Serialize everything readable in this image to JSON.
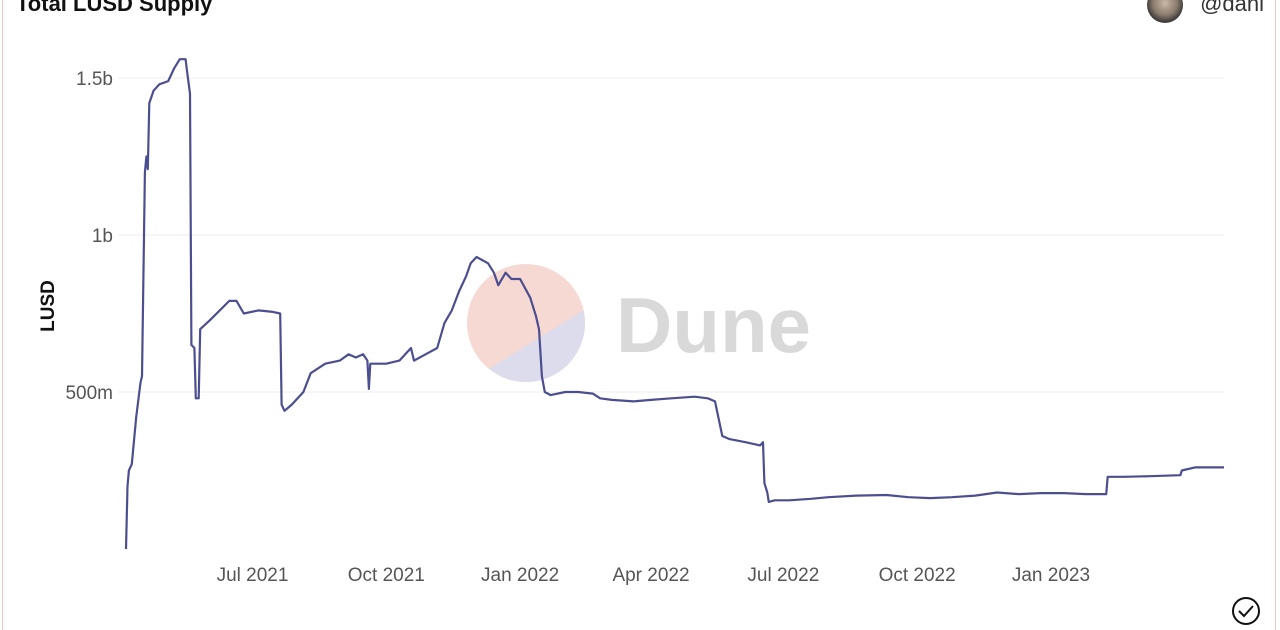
{
  "header": {
    "title": "Total LUSD Supply",
    "author": "@dani"
  },
  "watermark": {
    "text": "Dune"
  },
  "chart_data": {
    "type": "line",
    "title": "Total LUSD Supply",
    "xlabel": "",
    "ylabel": "LUSD",
    "ylim": [
      0,
      1600000000
    ],
    "xlim": [
      "2021-04-05",
      "2023-04-30"
    ],
    "yticks": [
      {
        "value": 500000000,
        "label": "500m"
      },
      {
        "value": 1000000000,
        "label": "1b"
      },
      {
        "value": 1500000000,
        "label": "1.5b"
      }
    ],
    "xticks": [
      {
        "date": "2021-07-01",
        "label": "Jul 2021"
      },
      {
        "date": "2021-10-01",
        "label": "Oct 2021"
      },
      {
        "date": "2022-01-01",
        "label": "Jan 2022"
      },
      {
        "date": "2022-04-01",
        "label": "Apr 2022"
      },
      {
        "date": "2022-07-01",
        "label": "Jul 2022"
      },
      {
        "date": "2022-10-01",
        "label": "Oct 2022"
      },
      {
        "date": "2023-01-01",
        "label": "Jan 2023"
      }
    ],
    "grid": true,
    "color": "#4c4f8f",
    "series": [
      {
        "points": [
          [
            "2021-04-05",
            0
          ],
          [
            "2021-04-06",
            200000000
          ],
          [
            "2021-04-07",
            250000000
          ],
          [
            "2021-04-09",
            270000000
          ],
          [
            "2021-04-12",
            420000000
          ],
          [
            "2021-04-15",
            530000000
          ],
          [
            "2021-04-16",
            550000000
          ],
          [
            "2021-04-18",
            1200000000
          ],
          [
            "2021-04-19",
            1250000000
          ],
          [
            "2021-04-20",
            1210000000
          ],
          [
            "2021-04-21",
            1420000000
          ],
          [
            "2021-04-24",
            1460000000
          ],
          [
            "2021-04-28",
            1480000000
          ],
          [
            "2021-05-04",
            1490000000
          ],
          [
            "2021-05-08",
            1530000000
          ],
          [
            "2021-05-12",
            1560000000
          ],
          [
            "2021-05-16",
            1560000000
          ],
          [
            "2021-05-17",
            1520000000
          ],
          [
            "2021-05-19",
            1450000000
          ],
          [
            "2021-05-20",
            650000000
          ],
          [
            "2021-05-22",
            640000000
          ],
          [
            "2021-05-23",
            480000000
          ],
          [
            "2021-05-25",
            480000000
          ],
          [
            "2021-05-26",
            700000000
          ],
          [
            "2021-06-02",
            730000000
          ],
          [
            "2021-06-15",
            790000000
          ],
          [
            "2021-06-20",
            790000000
          ],
          [
            "2021-06-25",
            750000000
          ],
          [
            "2021-07-05",
            760000000
          ],
          [
            "2021-07-15",
            755000000
          ],
          [
            "2021-07-20",
            750000000
          ],
          [
            "2021-07-21",
            460000000
          ],
          [
            "2021-07-23",
            440000000
          ],
          [
            "2021-07-28",
            460000000
          ],
          [
            "2021-08-01",
            480000000
          ],
          [
            "2021-08-05",
            500000000
          ],
          [
            "2021-08-10",
            560000000
          ],
          [
            "2021-08-20",
            590000000
          ],
          [
            "2021-08-30",
            600000000
          ],
          [
            "2021-09-05",
            620000000
          ],
          [
            "2021-09-10",
            610000000
          ],
          [
            "2021-09-15",
            620000000
          ],
          [
            "2021-09-18",
            600000000
          ],
          [
            "2021-09-19",
            510000000
          ],
          [
            "2021-09-20",
            590000000
          ],
          [
            "2021-10-01",
            590000000
          ],
          [
            "2021-10-10",
            600000000
          ],
          [
            "2021-10-18",
            640000000
          ],
          [
            "2021-10-20",
            600000000
          ],
          [
            "2021-10-28",
            620000000
          ],
          [
            "2021-11-05",
            640000000
          ],
          [
            "2021-11-10",
            720000000
          ],
          [
            "2021-11-15",
            760000000
          ],
          [
            "2021-11-20",
            820000000
          ],
          [
            "2021-11-25",
            870000000
          ],
          [
            "2021-11-28",
            910000000
          ],
          [
            "2021-12-02",
            930000000
          ],
          [
            "2021-12-06",
            920000000
          ],
          [
            "2021-12-10",
            910000000
          ],
          [
            "2021-12-14",
            880000000
          ],
          [
            "2021-12-17",
            840000000
          ],
          [
            "2021-12-22",
            880000000
          ],
          [
            "2021-12-26",
            860000000
          ],
          [
            "2022-01-01",
            860000000
          ],
          [
            "2022-01-08",
            800000000
          ],
          [
            "2022-01-12",
            740000000
          ],
          [
            "2022-01-14",
            700000000
          ],
          [
            "2022-01-16",
            550000000
          ],
          [
            "2022-01-18",
            500000000
          ],
          [
            "2022-01-22",
            490000000
          ],
          [
            "2022-02-01",
            500000000
          ],
          [
            "2022-02-10",
            500000000
          ],
          [
            "2022-02-20",
            495000000
          ],
          [
            "2022-02-25",
            480000000
          ],
          [
            "2022-03-05",
            475000000
          ],
          [
            "2022-03-20",
            470000000
          ],
          [
            "2022-04-01",
            475000000
          ],
          [
            "2022-04-15",
            480000000
          ],
          [
            "2022-05-01",
            485000000
          ],
          [
            "2022-05-10",
            480000000
          ],
          [
            "2022-05-15",
            470000000
          ],
          [
            "2022-05-20",
            360000000
          ],
          [
            "2022-05-25",
            350000000
          ],
          [
            "2022-06-05",
            340000000
          ],
          [
            "2022-06-15",
            330000000
          ],
          [
            "2022-06-17",
            340000000
          ],
          [
            "2022-06-18",
            210000000
          ],
          [
            "2022-06-20",
            180000000
          ],
          [
            "2022-06-21",
            150000000
          ],
          [
            "2022-06-25",
            155000000
          ],
          [
            "2022-07-05",
            155000000
          ],
          [
            "2022-07-20",
            160000000
          ],
          [
            "2022-08-01",
            165000000
          ],
          [
            "2022-08-20",
            170000000
          ],
          [
            "2022-09-10",
            172000000
          ],
          [
            "2022-09-25",
            165000000
          ],
          [
            "2022-10-10",
            162000000
          ],
          [
            "2022-10-25",
            165000000
          ],
          [
            "2022-11-10",
            170000000
          ],
          [
            "2022-11-25",
            180000000
          ],
          [
            "2022-12-10",
            175000000
          ],
          [
            "2022-12-25",
            178000000
          ],
          [
            "2023-01-10",
            178000000
          ],
          [
            "2023-01-25",
            175000000
          ],
          [
            "2023-02-08",
            175000000
          ],
          [
            "2023-02-09",
            230000000
          ],
          [
            "2023-02-20",
            230000000
          ],
          [
            "2023-03-10",
            232000000
          ],
          [
            "2023-03-31",
            235000000
          ],
          [
            "2023-04-01",
            250000000
          ],
          [
            "2023-04-10",
            260000000
          ],
          [
            "2023-04-30",
            260000000
          ]
        ]
      }
    ]
  }
}
